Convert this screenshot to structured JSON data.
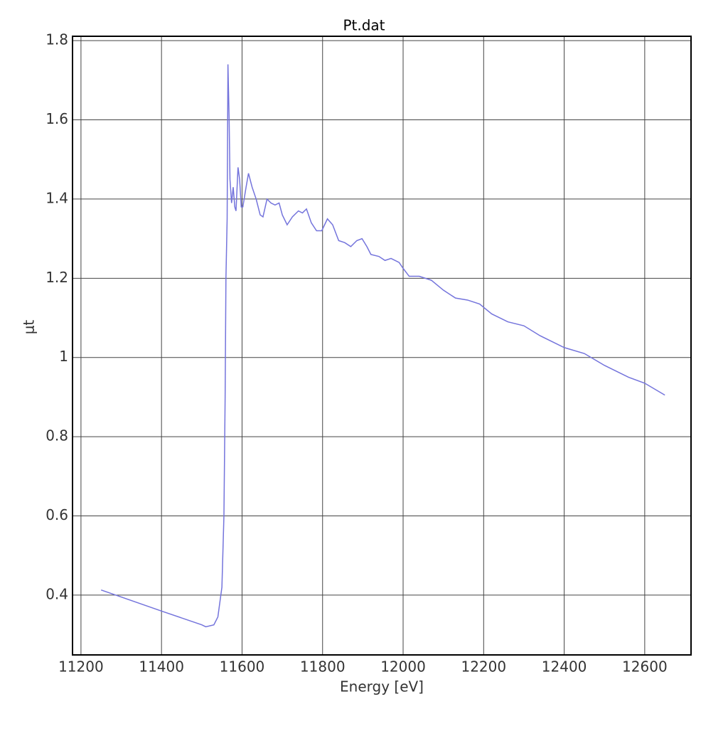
{
  "chart_data": {
    "type": "line",
    "title": "Pt.dat",
    "xlabel": "Energy [eV]",
    "ylabel": "μt",
    "x": [
      11250,
      11405,
      11500,
      11510,
      11530,
      11540,
      11550,
      11555,
      11558,
      11560,
      11563,
      11565,
      11568,
      11570,
      11574,
      11578,
      11582,
      11585,
      11590,
      11594,
      11598,
      11602,
      11610,
      11616,
      11625,
      11635,
      11645,
      11652,
      11662,
      11672,
      11682,
      11692,
      11700,
      11712,
      11725,
      11740,
      11750,
      11760,
      11772,
      11785,
      11798,
      11812,
      11825,
      11840,
      11855,
      11870,
      11885,
      11898,
      11910,
      11920,
      11940,
      11955,
      11970,
      11990,
      12000,
      12015,
      12040,
      12070,
      12100,
      12130,
      12160,
      12190,
      12220,
      12260,
      12300,
      12340,
      12400,
      12450,
      12500,
      12560,
      12600,
      12650
    ],
    "series": [
      {
        "name": "Pt.dat",
        "color": "#7474dc",
        "values": [
          0.413,
          0.358,
          0.325,
          0.32,
          0.325,
          0.345,
          0.42,
          0.6,
          0.9,
          1.2,
          1.35,
          1.74,
          1.6,
          1.45,
          1.39,
          1.43,
          1.38,
          1.37,
          1.48,
          1.45,
          1.38,
          1.38,
          1.43,
          1.465,
          1.43,
          1.4,
          1.36,
          1.355,
          1.4,
          1.39,
          1.385,
          1.39,
          1.36,
          1.335,
          1.355,
          1.37,
          1.365,
          1.375,
          1.34,
          1.32,
          1.32,
          1.35,
          1.335,
          1.295,
          1.29,
          1.28,
          1.295,
          1.3,
          1.28,
          1.26,
          1.255,
          1.245,
          1.25,
          1.24,
          1.225,
          1.205,
          1.205,
          1.195,
          1.17,
          1.15,
          1.145,
          1.135,
          1.11,
          1.09,
          1.08,
          1.055,
          1.025,
          1.01,
          0.98,
          0.95,
          0.935,
          0.905
        ]
      }
    ],
    "xlim": [
      11179,
      12715
    ],
    "ylim": [
      0.249,
      1.811
    ],
    "xticks": [
      11200,
      11400,
      11600,
      11800,
      12000,
      12200,
      12400,
      12600
    ],
    "yticks": [
      0.4,
      0.6,
      0.8,
      1,
      1.2,
      1.4,
      1.6,
      1.8
    ],
    "grid": true
  }
}
